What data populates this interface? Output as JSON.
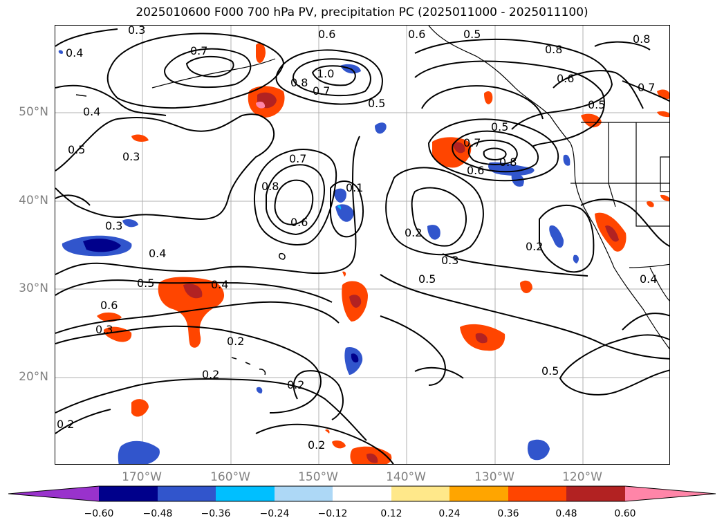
{
  "title": "2025010600 F000 700 hPa PV, precipitation PC (2025011000 - 2025011100)",
  "axes": {
    "lat_labels": [
      "50°N",
      "40°N",
      "30°N",
      "20°N"
    ],
    "lon_labels": [
      "170°W",
      "160°W",
      "150°W",
      "140°W",
      "130°W",
      "120°W"
    ]
  },
  "colorbar": {
    "ticks": [
      "−0.60",
      "−0.48",
      "−0.36",
      "−0.24",
      "−0.12",
      "0.12",
      "0.24",
      "0.36",
      "0.48",
      "0.60"
    ],
    "colors": [
      "#9932cc",
      "#00008b",
      "#3155cc",
      "#00bfff",
      "#add8f6",
      "#ffffff",
      "#ffe88a",
      "#ffa500",
      "#ff4500",
      "#b22222",
      "#ff85a8"
    ]
  },
  "contour_labels": [
    "0.3",
    "0.4",
    "0.7",
    "0.6",
    "1.0",
    "0.8",
    "0.7",
    "0.5",
    "0.6",
    "0.5",
    "0.8",
    "0.6",
    "0.5",
    "0.7",
    "0.8",
    "0.4",
    "0.5",
    "0.3",
    "0.7",
    "0.8",
    "0.6",
    "0.1",
    "0.7",
    "0.5",
    "0.6",
    "0.8",
    "0.3",
    "0.4",
    "0.5",
    "0.4",
    "0.6",
    "0.3",
    "0.2",
    "0.2",
    "0.2",
    "0.2",
    "0.2",
    "0.2",
    "0.3",
    "0.5",
    "0.2",
    "0.5",
    "0.4"
  ]
}
